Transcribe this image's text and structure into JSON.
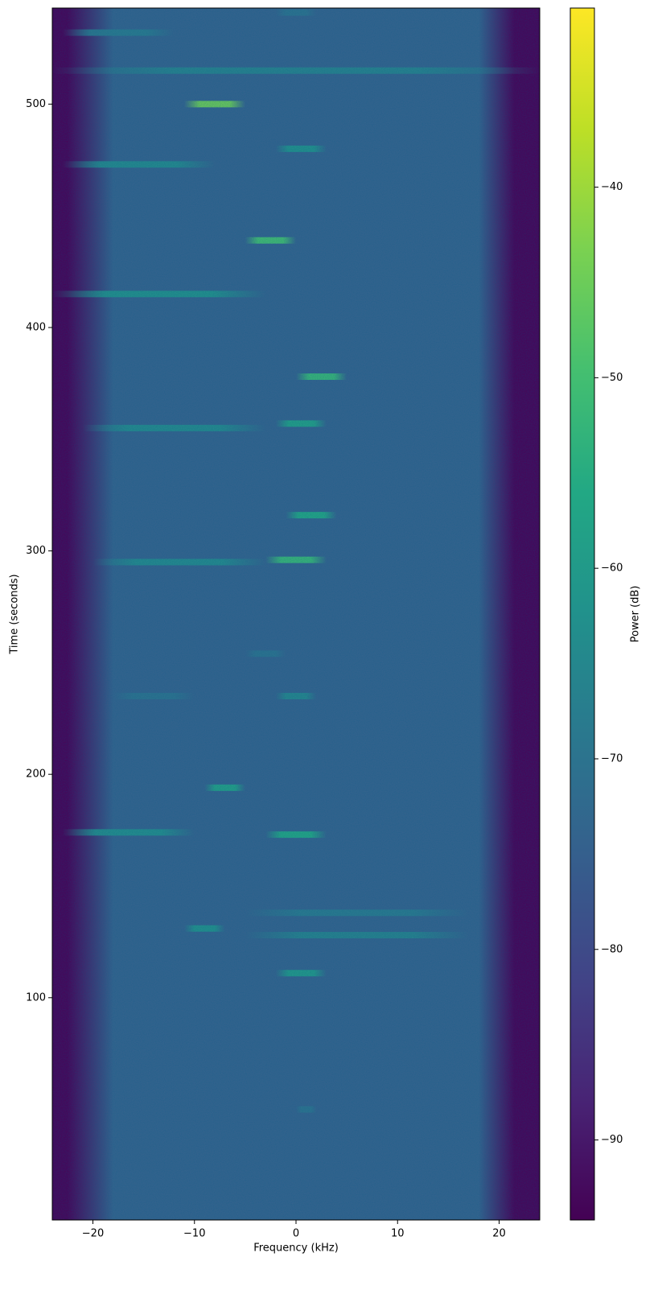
{
  "chart_data": {
    "type": "spectrogram",
    "x_label": "Frequency (kHz)",
    "y_label": "Time (seconds)",
    "colorbar_label": "Power (dB)",
    "colormap": "viridis",
    "xlim": [
      -24,
      24
    ],
    "xticks": [
      {
        "value": -20,
        "label": "−20"
      },
      {
        "value": -10,
        "label": "−10"
      },
      0,
      10,
      20
    ],
    "ylim": [
      0.5,
      543
    ],
    "yticks": [
      100,
      200,
      300,
      400,
      500
    ],
    "clim": [
      -94.2,
      -30.6
    ],
    "cticks": [
      {
        "value": -90,
        "label": "−90"
      },
      {
        "value": -80,
        "label": "−80"
      },
      {
        "value": -70,
        "label": "−70"
      },
      {
        "value": -60,
        "label": "−60"
      },
      {
        "value": -50,
        "label": "−50"
      },
      {
        "value": -40,
        "label": "−40"
      }
    ],
    "band": {
      "floor": -74,
      "flat": [
        -18,
        18
      ],
      "edge": [
        -22.5,
        21.5
      ],
      "edge_power": -93
    },
    "bursts": [
      {
        "time": 541,
        "freq_start": -2,
        "freq_end": 2,
        "power": -70
      },
      {
        "time": 532,
        "freq_start": -23,
        "freq_end": -12,
        "power": -68
      },
      {
        "time": 515,
        "freq_start": -24,
        "freq_end": 24,
        "power": -66
      },
      {
        "time": 500,
        "freq_start": -11,
        "freq_end": -5,
        "power": -45
      },
      {
        "time": 480,
        "freq_start": -2,
        "freq_end": 3,
        "power": -62
      },
      {
        "time": 473,
        "freq_start": -23,
        "freq_end": -8,
        "power": -64
      },
      {
        "time": 439,
        "freq_start": -5,
        "freq_end": 0,
        "power": -50
      },
      {
        "time": 415,
        "freq_start": -24,
        "freq_end": -3,
        "power": -62
      },
      {
        "time": 378,
        "freq_start": 0,
        "freq_end": 5,
        "power": -52
      },
      {
        "time": 357,
        "freq_start": -2,
        "freq_end": 3,
        "power": -58
      },
      {
        "time": 355,
        "freq_start": -21,
        "freq_end": -3,
        "power": -64
      },
      {
        "time": 316,
        "freq_start": -1,
        "freq_end": 4,
        "power": -56
      },
      {
        "time": 296,
        "freq_start": -3,
        "freq_end": 3,
        "power": -52
      },
      {
        "time": 295,
        "freq_start": -20,
        "freq_end": -3,
        "power": -64
      },
      {
        "time": 254,
        "freq_start": -5,
        "freq_end": -1,
        "power": -70
      },
      {
        "time": 235,
        "freq_start": -2,
        "freq_end": 2,
        "power": -65
      },
      {
        "time": 235,
        "freq_start": -18,
        "freq_end": -10,
        "power": -70
      },
      {
        "time": 194,
        "freq_start": -9,
        "freq_end": -5,
        "power": -58
      },
      {
        "time": 174,
        "freq_start": -23,
        "freq_end": -10,
        "power": -63
      },
      {
        "time": 173,
        "freq_start": -3,
        "freq_end": 3,
        "power": -56
      },
      {
        "time": 138,
        "freq_start": -5,
        "freq_end": 17,
        "power": -68
      },
      {
        "time": 131,
        "freq_start": -11,
        "freq_end": -7,
        "power": -62
      },
      {
        "time": 128,
        "freq_start": -5,
        "freq_end": 17,
        "power": -66
      },
      {
        "time": 111,
        "freq_start": -2,
        "freq_end": 3,
        "power": -60
      },
      {
        "time": 50,
        "freq_start": 0,
        "freq_end": 2,
        "power": -70
      }
    ]
  }
}
